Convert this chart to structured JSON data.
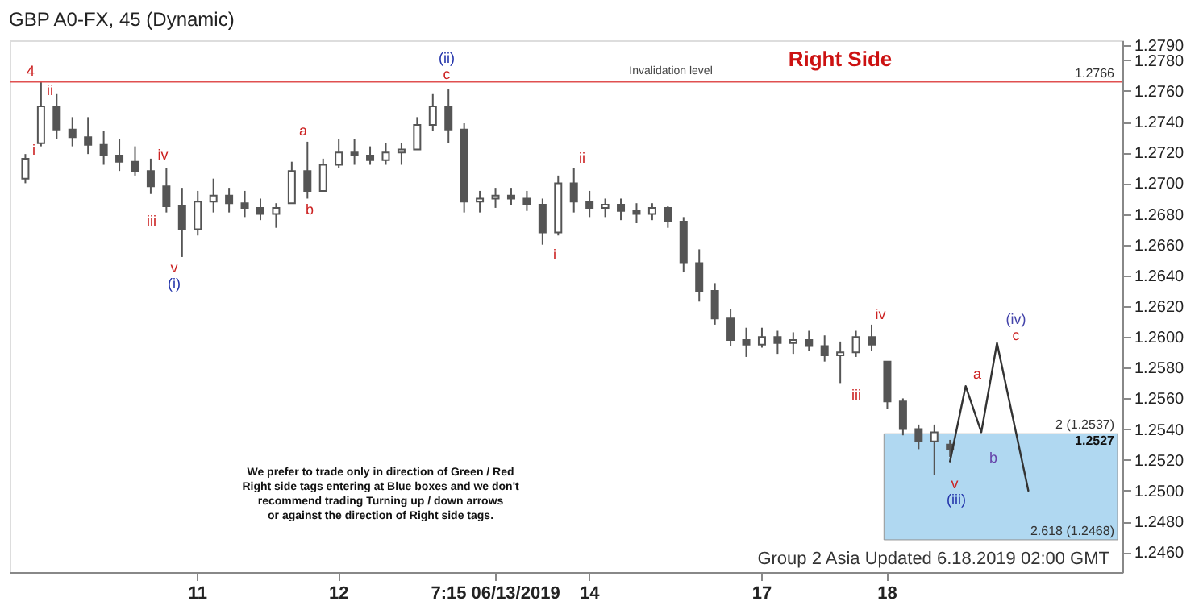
{
  "chart_data": {
    "type": "candlestick",
    "title": "GBP A0-FX, 45 (Dynamic)",
    "color": "#555555",
    "categories": [
      null,
      null,
      null,
      null,
      null,
      null,
      null,
      null,
      null,
      null,
      null,
      "11",
      null,
      null,
      null,
      null,
      null,
      null,
      null,
      null,
      "12",
      null,
      null,
      null,
      null,
      null,
      null,
      null,
      null,
      null,
      "7:15 06/13/2019",
      null,
      null,
      null,
      null,
      null,
      "14",
      null,
      null,
      null,
      null,
      null,
      null,
      null,
      null,
      null,
      null,
      "17",
      null,
      null,
      null,
      null,
      null,
      null,
      null,
      "18",
      null,
      null,
      null,
      null,
      null,
      null,
      null,
      null,
      null,
      null,
      null,
      null,
      null,
      null
    ],
    "ohlc": [
      [
        1.2703,
        1.2719,
        1.27,
        1.2716
      ],
      [
        1.2726,
        1.2766,
        1.2724,
        1.275
      ],
      [
        1.275,
        1.2758,
        1.2729,
        1.2735
      ],
      [
        1.2735,
        1.2743,
        1.2724,
        1.273
      ],
      [
        1.273,
        1.2743,
        1.2719,
        1.2725
      ],
      [
        1.2725,
        1.2734,
        1.2712,
        1.2718
      ],
      [
        1.2718,
        1.2729,
        1.2708,
        1.2714
      ],
      [
        1.2714,
        1.2724,
        1.2705,
        1.2708
      ],
      [
        1.2708,
        1.2716,
        1.2693,
        1.2698
      ],
      [
        1.2698,
        1.271,
        1.2681,
        1.2685
      ],
      [
        1.2685,
        1.2697,
        1.2652,
        1.267
      ],
      [
        1.267,
        1.2695,
        1.2666,
        1.2688
      ],
      [
        1.2688,
        1.2703,
        1.2681,
        1.2692
      ],
      [
        1.2692,
        1.2697,
        1.2681,
        1.2687
      ],
      [
        1.2687,
        1.2695,
        1.2678,
        1.2684
      ],
      [
        1.2684,
        1.269,
        1.2676,
        1.268
      ],
      [
        1.268,
        1.2687,
        1.2671,
        1.2684
      ],
      [
        1.2687,
        1.2714,
        1.2687,
        1.2708
      ],
      [
        1.2708,
        1.2727,
        1.269,
        1.2695
      ],
      [
        1.2695,
        1.2716,
        1.2695,
        1.2712
      ],
      [
        1.2712,
        1.2729,
        1.271,
        1.272
      ],
      [
        1.272,
        1.2729,
        1.2712,
        1.2718
      ],
      [
        1.2718,
        1.2724,
        1.2712,
        1.2715
      ],
      [
        1.2715,
        1.2726,
        1.2712,
        1.272
      ],
      [
        1.272,
        1.2726,
        1.2712,
        1.2722
      ],
      [
        1.2722,
        1.2743,
        1.2722,
        1.2738
      ],
      [
        1.2738,
        1.2758,
        1.2734,
        1.275
      ],
      [
        1.275,
        1.2761,
        1.2726,
        1.2735
      ],
      [
        1.2735,
        1.2739,
        1.2681,
        1.2688
      ],
      [
        1.2688,
        1.2695,
        1.2681,
        1.269
      ],
      [
        1.269,
        1.2697,
        1.2684,
        1.2692
      ],
      [
        1.2692,
        1.2697,
        1.2686,
        1.269
      ],
      [
        1.269,
        1.2695,
        1.2682,
        1.2686
      ],
      [
        1.2686,
        1.269,
        1.266,
        1.2668
      ],
      [
        1.2668,
        1.2705,
        1.2666,
        1.27
      ],
      [
        1.27,
        1.271,
        1.2681,
        1.2688
      ],
      [
        1.2688,
        1.2695,
        1.2678,
        1.2684
      ],
      [
        1.2684,
        1.269,
        1.2678,
        1.2686
      ],
      [
        1.2686,
        1.269,
        1.2676,
        1.2682
      ],
      [
        1.2682,
        1.2687,
        1.2674,
        1.268
      ],
      [
        1.268,
        1.2687,
        1.2676,
        1.2684
      ],
      [
        1.2684,
        1.2685,
        1.2671,
        1.2675
      ],
      [
        1.2675,
        1.2678,
        1.2642,
        1.2648
      ],
      [
        1.2648,
        1.2657,
        1.2623,
        1.263
      ],
      [
        1.263,
        1.2635,
        1.2608,
        1.2612
      ],
      [
        1.2612,
        1.2618,
        1.2594,
        1.2598
      ],
      [
        1.2598,
        1.2606,
        1.2587,
        1.2595
      ],
      [
        1.2595,
        1.2606,
        1.2593,
        1.26
      ],
      [
        1.26,
        1.2604,
        1.2589,
        1.2596
      ],
      [
        1.2596,
        1.2603,
        1.2589,
        1.2598
      ],
      [
        1.2598,
        1.2604,
        1.2591,
        1.2594
      ],
      [
        1.2594,
        1.2601,
        1.2584,
        1.2588
      ],
      [
        1.2588,
        1.2597,
        1.257,
        1.259
      ],
      [
        1.259,
        1.2604,
        1.2587,
        1.26
      ],
      [
        1.26,
        1.2608,
        1.2591,
        1.2595
      ],
      [
        1.2584,
        1.2584,
        1.2553,
        1.2558
      ],
      [
        1.2558,
        1.256,
        1.2536,
        1.254
      ],
      [
        1.254,
        1.2543,
        1.2527,
        1.2532
      ],
      [
        1.2532,
        1.2543,
        1.251,
        1.2538
      ],
      [
        1.253,
        1.2533,
        1.2522,
        1.2527
      ],
      null,
      null,
      null,
      null,
      null,
      null,
      null,
      null,
      null,
      null
    ],
    "series": [
      {
        "type": "line",
        "color": "#333333",
        "values": [
          null,
          null,
          null,
          null,
          null,
          null,
          null,
          null,
          null,
          null,
          null,
          null,
          null,
          null,
          null,
          null,
          null,
          null,
          null,
          null,
          null,
          null,
          null,
          null,
          null,
          null,
          null,
          null,
          null,
          null,
          null,
          null,
          null,
          null,
          null,
          null,
          null,
          null,
          null,
          null,
          null,
          null,
          null,
          null,
          null,
          null,
          null,
          null,
          null,
          null,
          null,
          null,
          null,
          null,
          null,
          null,
          null,
          null,
          null,
          1.2519,
          1.2568,
          1.2538,
          1.2596,
          null,
          1.25,
          null,
          null,
          null,
          null,
          null
        ]
      }
    ],
    "ylim": [
      1.2447,
      1.2793
    ],
    "yticks": [
      {
        "value": 1.246,
        "label": "1.2460"
      },
      {
        "value": 1.248,
        "label": "1.2480"
      },
      {
        "value": 1.25,
        "label": "1.2500"
      },
      {
        "value": 1.252,
        "label": "1.2520"
      },
      {
        "value": 1.254,
        "label": "1.2540"
      },
      {
        "value": 1.256,
        "label": "1.2560"
      },
      {
        "value": 1.258,
        "label": "1.2580"
      },
      {
        "value": 1.26,
        "label": "1.2600"
      },
      {
        "value": 1.262,
        "label": "1.2620"
      },
      {
        "value": 1.264,
        "label": "1.2640"
      },
      {
        "value": 1.266,
        "label": "1.2660"
      },
      {
        "value": 1.268,
        "label": "1.2680"
      },
      {
        "value": 1.27,
        "label": "1.2700"
      },
      {
        "value": 1.272,
        "label": "1.2720"
      },
      {
        "value": 1.274,
        "label": "1.2740"
      },
      {
        "value": 1.276,
        "label": "1.2760"
      },
      {
        "value": 1.278,
        "label": "1.2780"
      },
      {
        "value": 1.279,
        "label": "1.2790"
      }
    ],
    "grid": false,
    "ref_lines": [
      {
        "axis": "y",
        "value": 1.2766,
        "label": "Invalidation level",
        "color": "#e05050"
      }
    ],
    "bands": [
      {
        "axis": "y",
        "from": 1.2468,
        "to": 1.2537,
        "color": "#a8d4f0"
      }
    ],
    "annotations": [
      "Right Side",
      "We prefer to trade only in direction of Green / Red\nRight side tags entering at Blue boxes and we don't\nrecommend trading Turning up / down arrows\nor against the direction of Right side tags.",
      "Group 2 Asia Updated 6.18.2019 02:00 GMT",
      "4",
      "ii",
      "i",
      "iv",
      "iii",
      "v",
      "(i)",
      "a",
      "b",
      "(ii)",
      "c",
      "ii",
      "i",
      "iv",
      "iii",
      "v",
      "(iii)",
      "a",
      "b",
      "(iv)",
      "c",
      "1.2527",
      {
        "text": "1.2766",
        "y": 1.2766
      },
      {
        "text": "2 (1.2537)",
        "y": 1.2537
      },
      {
        "text": "2.618 (1.2468)",
        "y": 1.2468
      }
    ]
  }
}
